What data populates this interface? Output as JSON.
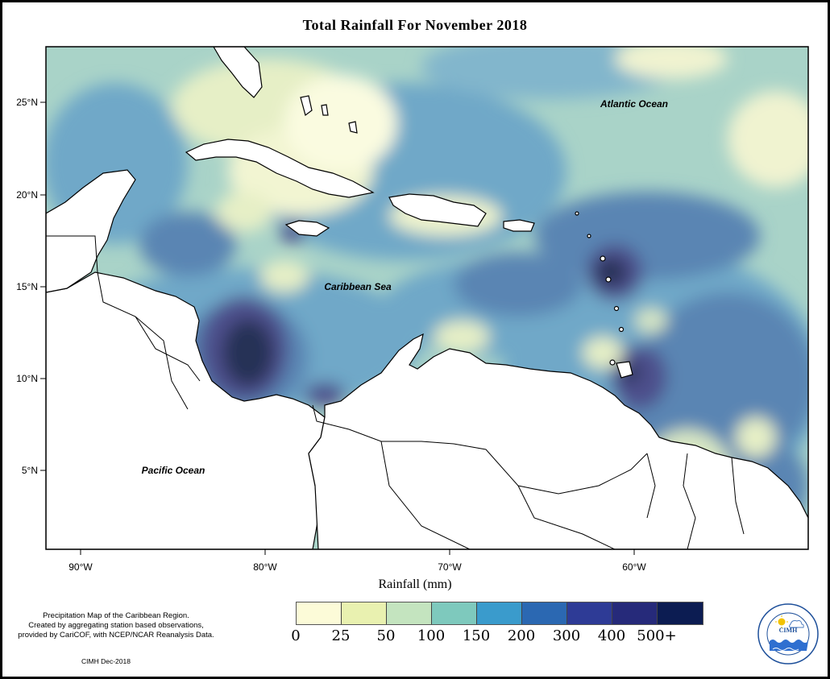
{
  "title": "Total Rainfall For November 2018",
  "axes": {
    "y_ticks": [
      "25°N",
      "20°N",
      "15°N",
      "10°N",
      "5°N"
    ],
    "x_ticks": [
      "90°W",
      "80°W",
      "70°W",
      "60°W"
    ],
    "xlabel": "Rainfall (mm)"
  },
  "labels": {
    "atlantic": "Atlantic Ocean",
    "caribbean": "Caribbean Sea",
    "pacific": "Pacific Ocean"
  },
  "legend": {
    "colors": [
      "#fcfbd8",
      "#e9f1b0",
      "#c4e4bf",
      "#7ec9bd",
      "#3a9bcc",
      "#2b68b2",
      "#2e3b96",
      "#262a7a",
      "#0c1c52"
    ],
    "labels": [
      "0",
      "25",
      "50",
      "100",
      "150",
      "200",
      "300",
      "400",
      "500+"
    ]
  },
  "caption": {
    "line1": "Precipitation Map of the Caribbean Region.",
    "line2": "Created by aggregating station based observations,",
    "line3": "provided by CariCOF, with NCEP/NCAR Reanalysis Data."
  },
  "credit": "CIMH Dec-2018",
  "logo": {
    "ring_top": "Caribbean Institute for",
    "abbr": "CIMH",
    "ring_bottom": "Meteorology and Hydrology"
  }
}
